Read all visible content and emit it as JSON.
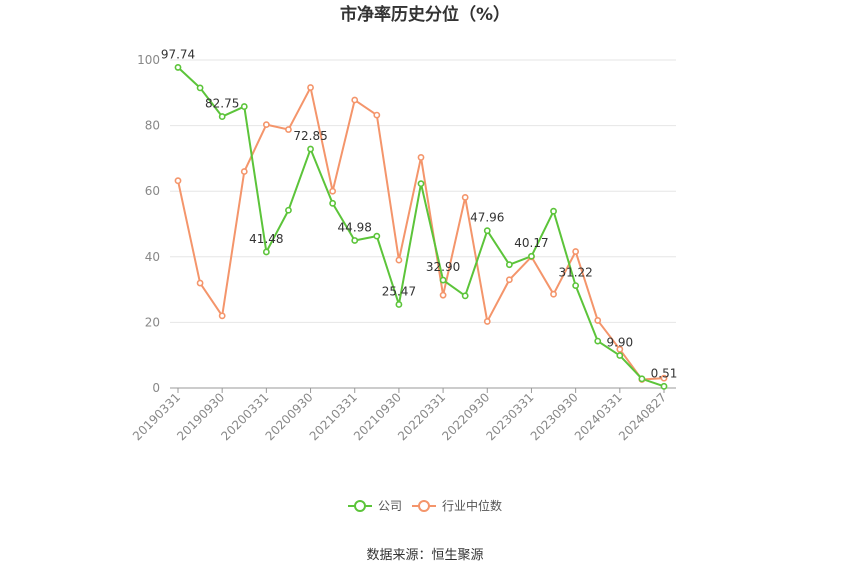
{
  "chart_data": {
    "type": "line",
    "title": "市净率历史分位（%）",
    "source": "数据来源：恒生聚源",
    "ylim": [
      0,
      100
    ],
    "yticks": [
      0,
      20,
      40,
      60,
      80,
      100
    ],
    "x": [
      "20190331",
      "20190630",
      "20190930",
      "20191231",
      "20200331",
      "20200630",
      "20200930",
      "20201231",
      "20210331",
      "20210630",
      "20210930",
      "20211231",
      "20220331",
      "20220630",
      "20220930",
      "20221231",
      "20230331",
      "20230630",
      "20230930",
      "20231231",
      "20240331",
      "20240630",
      "20240827"
    ],
    "xtick_labels": [
      "20190331",
      "20190930",
      "20200331",
      "20200930",
      "20210331",
      "20210930",
      "20220331",
      "20220930",
      "20230331",
      "20230930",
      "20240331",
      "20240827"
    ],
    "legend_position": "bottom-center",
    "series": [
      {
        "name": "公司",
        "color": "#5cc43a",
        "values": [
          97.74,
          91.5,
          82.75,
          85.8,
          41.48,
          54.2,
          72.85,
          56.3,
          44.98,
          46.3,
          25.47,
          62.3,
          32.9,
          28.1,
          47.96,
          37.6,
          40.17,
          53.9,
          31.22,
          14.3,
          9.9,
          2.8,
          0.51
        ],
        "labels": [
          "97.74",
          null,
          "82.75",
          null,
          "41.48",
          null,
          "72.85",
          null,
          "44.98",
          null,
          "25.47",
          null,
          "32.90",
          null,
          "47.96",
          null,
          "40.17",
          null,
          "31.22",
          null,
          "9.90",
          null,
          "0.51"
        ]
      },
      {
        "name": "行业中位数",
        "color": "#f4956b",
        "values": [
          63.2,
          32.0,
          22.0,
          66.0,
          80.3,
          78.8,
          91.6,
          60.0,
          87.8,
          83.2,
          39.0,
          70.3,
          28.3,
          58.1,
          20.3,
          33.0,
          40.0,
          28.6,
          41.6,
          20.6,
          11.8,
          2.6,
          3.0
        ]
      }
    ]
  }
}
